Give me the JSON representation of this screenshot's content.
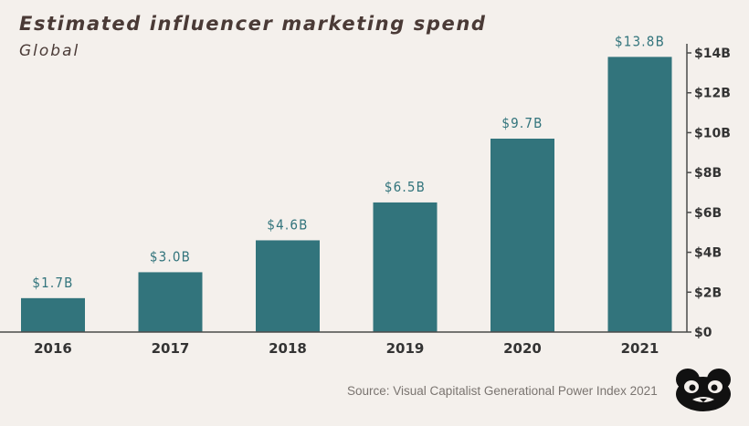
{
  "chart_data": {
    "type": "bar",
    "title": "Estimated influencer marketing spend",
    "subtitle": "Global",
    "categories": [
      "2016",
      "2017",
      "2018",
      "2019",
      "2020",
      "2021"
    ],
    "values": [
      1.7,
      3.0,
      4.6,
      6.5,
      9.7,
      13.8
    ],
    "data_labels": [
      "$1.7B",
      "$3.0B",
      "$4.6B",
      "$6.5B",
      "$9.7B",
      "$13.8B"
    ],
    "ylim": [
      0,
      14
    ],
    "yticks": [
      0,
      2,
      4,
      6,
      8,
      10,
      12,
      14
    ],
    "ytick_labels": [
      "$0",
      "$2B",
      "$4B",
      "$6B",
      "$8B",
      "$10B",
      "$12B",
      "$14B"
    ],
    "y_axis_side": "right",
    "grid": false,
    "colors": {
      "bar": "#32747c",
      "label": "#32747c",
      "background": "#f4f0ec"
    }
  },
  "source": "Source: Visual Capitalist Generational Power Index 2021",
  "logo_icon": "visual-capitalist-logo-icon"
}
